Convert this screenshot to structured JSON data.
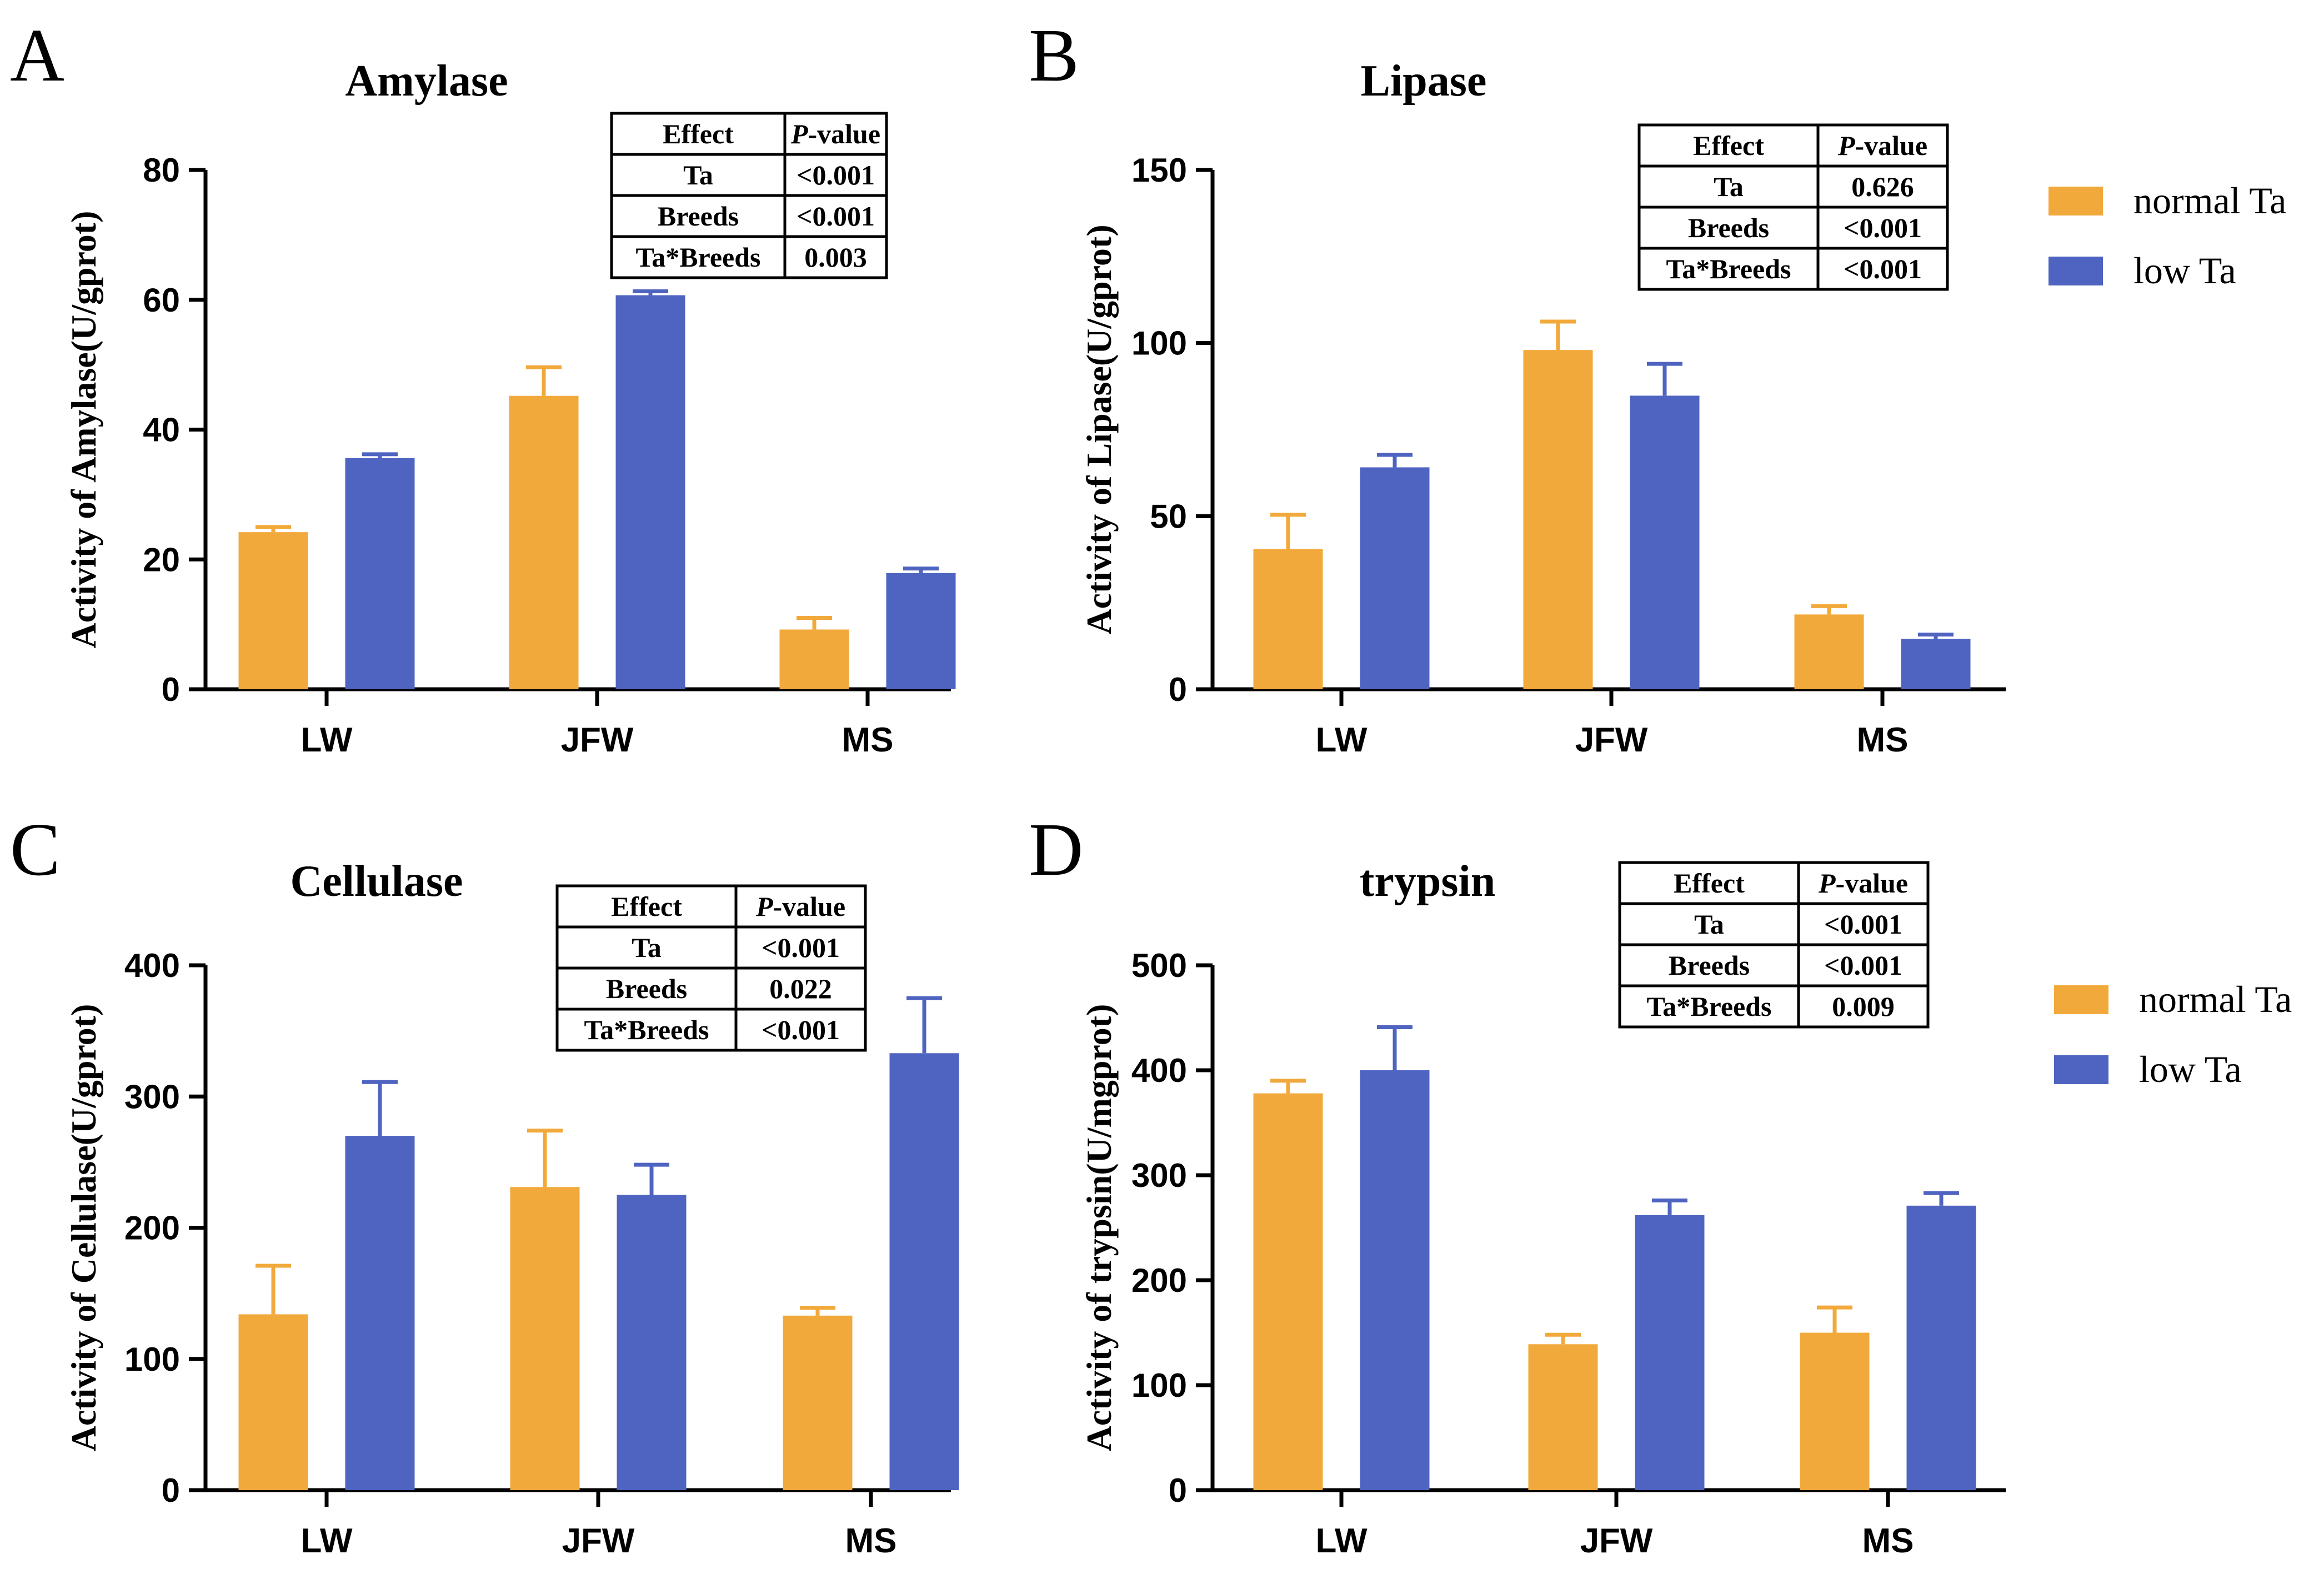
{
  "figure": {
    "legend_rows": [
      {
        "labels": [
          "normal Ta",
          "low Ta"
        ]
      },
      {
        "labels": [
          "normal Ta",
          "low Ta"
        ]
      }
    ]
  },
  "chart_data": [
    {
      "panel": "A",
      "type": "bar",
      "title": "Amylase",
      "xlabel": "",
      "ylabel": "Activity of Amylase(U/gprot)",
      "categories": [
        "LW",
        "JFW",
        "MS"
      ],
      "ylim": [
        0,
        80
      ],
      "yticks": [
        0,
        20,
        40,
        60,
        80
      ],
      "series": [
        {
          "name": "normal Ta",
          "color": "#F2A93B",
          "values": [
            24.2,
            45.2,
            9.2
          ],
          "errors": [
            0.8,
            4.4,
            1.8
          ]
        },
        {
          "name": "low Ta",
          "color": "#4F64C0",
          "values": [
            35.6,
            60.7,
            17.9
          ],
          "errors": [
            0.6,
            0.6,
            0.7
          ]
        }
      ],
      "stats_table": {
        "headers": [
          "Effect",
          "-value"
        ],
        "header_italic_prefix": "P",
        "rows": [
          [
            "Ta",
            "<0.001"
          ],
          [
            "Breeds",
            "<0.001"
          ],
          [
            "Ta*Breeds",
            "0.003"
          ]
        ]
      }
    },
    {
      "panel": "B",
      "type": "bar",
      "title": "Lipase",
      "xlabel": "",
      "ylabel": "Activity of Lipase(U/gprot)",
      "categories": [
        "LW",
        "JFW",
        "MS"
      ],
      "ylim": [
        0,
        150
      ],
      "yticks": [
        0,
        50,
        100,
        150
      ],
      "series": [
        {
          "name": "normal Ta",
          "color": "#F2A93B",
          "values": [
            40.5,
            98.0,
            21.6
          ],
          "errors": [
            9.9,
            8.2,
            2.4
          ]
        },
        {
          "name": "low Ta",
          "color": "#4F64C0",
          "values": [
            64.1,
            84.8,
            14.6
          ],
          "errors": [
            3.6,
            9.2,
            1.2
          ]
        }
      ],
      "stats_table": {
        "headers": [
          "Effect",
          "-value"
        ],
        "header_italic_prefix": "P",
        "rows": [
          [
            "Ta",
            "0.626"
          ],
          [
            "Breeds",
            "<0.001"
          ],
          [
            "Ta*Breeds",
            "<0.001"
          ]
        ]
      }
    },
    {
      "panel": "C",
      "type": "bar",
      "title": "Cellulase",
      "xlabel": "",
      "ylabel": "Activity of Cellulase(U/gprot)",
      "categories": [
        "LW",
        "JFW",
        "MS"
      ],
      "ylim": [
        0,
        400
      ],
      "yticks": [
        0,
        100,
        200,
        300,
        400
      ],
      "series": [
        {
          "name": "normal Ta",
          "color": "#F2A93B",
          "values": [
            134,
            231,
            133
          ],
          "errors": [
            37,
            43,
            6
          ]
        },
        {
          "name": "low Ta",
          "color": "#4F64C0",
          "values": [
            270,
            225,
            333
          ],
          "errors": [
            41,
            23,
            42
          ]
        }
      ],
      "stats_table": {
        "headers": [
          "Effect",
          "-value"
        ],
        "header_italic_prefix": "P",
        "rows": [
          [
            "Ta",
            "<0.001"
          ],
          [
            "Breeds",
            "0.022"
          ],
          [
            "Ta*Breeds",
            "<0.001"
          ]
        ]
      }
    },
    {
      "panel": "D",
      "type": "bar",
      "title": "trypsin",
      "xlabel": "",
      "ylabel": "Activity of trypsin(U/mgprot)",
      "categories": [
        "LW",
        "JFW",
        "MS"
      ],
      "ylim": [
        0,
        500
      ],
      "yticks": [
        0,
        100,
        200,
        300,
        400,
        500
      ],
      "series": [
        {
          "name": "normal Ta",
          "color": "#F2A93B",
          "values": [
            378,
            139,
            150
          ],
          "errors": [
            12,
            9,
            24
          ]
        },
        {
          "name": "low Ta",
          "color": "#4F64C0",
          "values": [
            400,
            262,
            271
          ],
          "errors": [
            41,
            14,
            12
          ]
        }
      ],
      "stats_table": {
        "headers": [
          "Effect",
          "-value"
        ],
        "header_italic_prefix": "P",
        "rows": [
          [
            "Ta",
            "<0.001"
          ],
          [
            "Breeds",
            "<0.001"
          ],
          [
            "Ta*Breeds",
            "0.009"
          ]
        ]
      }
    }
  ]
}
